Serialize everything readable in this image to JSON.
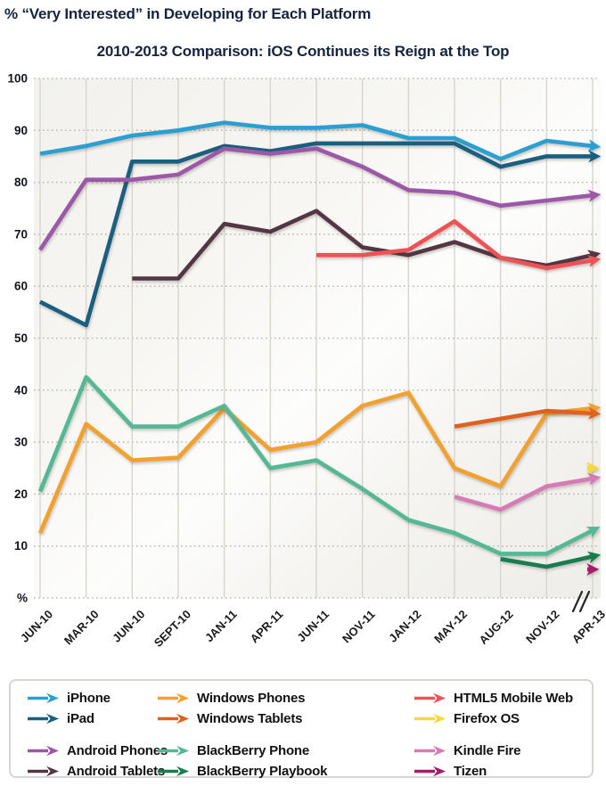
{
  "chart_data": {
    "type": "line",
    "title": "% “Very Interested” in Developing for Each Platform",
    "subtitle": "2010-2013 Comparison: iOS Continues its Reign at the Top",
    "ylim": [
      0,
      100
    ],
    "ytick_step": 10,
    "ytick_labels": [
      "100",
      "90",
      "80",
      "70",
      "60",
      "50",
      "40",
      "30",
      "20",
      "10",
      "%"
    ],
    "grid": {
      "vertical": "solid",
      "horizontal": "dotted"
    },
    "axis_break": {
      "present": true,
      "between": [
        "NOV-12",
        "APR-13"
      ]
    },
    "legend_position": "bottom",
    "categories": [
      "JUN-10",
      "MAR-10",
      "JUN-10",
      "SEPT-10",
      "JAN-11",
      "APR-11",
      "JUN-11",
      "NOV-11",
      "JAN-12",
      "MAY-12",
      "AUG-12",
      "NOV-12",
      "APR-13"
    ],
    "series": [
      {
        "name": "iPhone",
        "color": "#2b9fd1",
        "values": [
          85.5,
          87,
          89,
          90,
          91.5,
          90.5,
          90.5,
          91,
          88.5,
          88.5,
          84.5,
          88,
          87
        ]
      },
      {
        "name": "iPad",
        "color": "#1a5f80",
        "values": [
          57,
          52.5,
          84,
          84,
          87,
          86,
          87.5,
          87.5,
          87.5,
          87.5,
          83,
          85,
          85
        ]
      },
      {
        "name": "Android Phones",
        "color": "#9c57a8",
        "values": [
          67,
          80.5,
          80.5,
          81.5,
          86.5,
          85.5,
          86.5,
          83,
          78.5,
          78,
          75.5,
          76.5,
          77.5
        ]
      },
      {
        "name": "Android Tablets",
        "color": "#533543",
        "values": [
          null,
          null,
          61.5,
          61.5,
          72,
          70.5,
          74.5,
          67.5,
          66,
          68.5,
          65.5,
          64,
          66
        ]
      },
      {
        "name": "HTML5 Mobile Web",
        "color": "#ef5155",
        "values": [
          null,
          null,
          null,
          null,
          null,
          null,
          66,
          66,
          67,
          72.5,
          65.5,
          63.5,
          65
        ]
      },
      {
        "name": "Windows Phones",
        "color": "#f2a12e",
        "values": [
          12.5,
          33.5,
          26.5,
          27,
          36.5,
          28.5,
          30,
          37,
          39.5,
          25,
          21.5,
          35.5,
          36.5
        ]
      },
      {
        "name": "Windows Tablets",
        "color": "#e0601e",
        "values": [
          null,
          null,
          null,
          null,
          null,
          null,
          null,
          null,
          null,
          33,
          null,
          36,
          35.5
        ]
      },
      {
        "name": "BlackBerry Phone",
        "color": "#53b895",
        "values": [
          20.5,
          42.5,
          33,
          33,
          37,
          25,
          26.5,
          21,
          15,
          12.5,
          8.5,
          8.5,
          13
        ]
      },
      {
        "name": "BlackBerry Playbook",
        "color": "#177c4e",
        "values": [
          null,
          null,
          null,
          null,
          null,
          null,
          null,
          null,
          null,
          null,
          7.5,
          6,
          8
        ]
      },
      {
        "name": "Kindle Fire",
        "color": "#d87ab8",
        "values": [
          null,
          null,
          null,
          null,
          null,
          null,
          null,
          null,
          null,
          19.5,
          17,
          21.5,
          23
        ]
      },
      {
        "name": "Firefox OS",
        "color": "#f6d93c",
        "values": [
          null,
          null,
          null,
          null,
          null,
          null,
          null,
          null,
          null,
          null,
          null,
          null,
          25
        ]
      },
      {
        "name": "Tizen",
        "color": "#a31d68",
        "values": [
          null,
          null,
          null,
          null,
          null,
          null,
          null,
          null,
          null,
          null,
          null,
          null,
          5.5
        ]
      }
    ]
  },
  "legend": {
    "columns": [
      [
        "iPhone",
        "iPad",
        "",
        "Android Phones",
        "Android Tablets"
      ],
      [
        "Windows Phones",
        "Windows Tablets",
        "",
        "BlackBerry Phone",
        "BlackBerry Playbook"
      ],
      [
        "HTML5 Mobile Web",
        "Firefox OS",
        "",
        "Kindle Fire",
        "Tizen"
      ]
    ]
  }
}
